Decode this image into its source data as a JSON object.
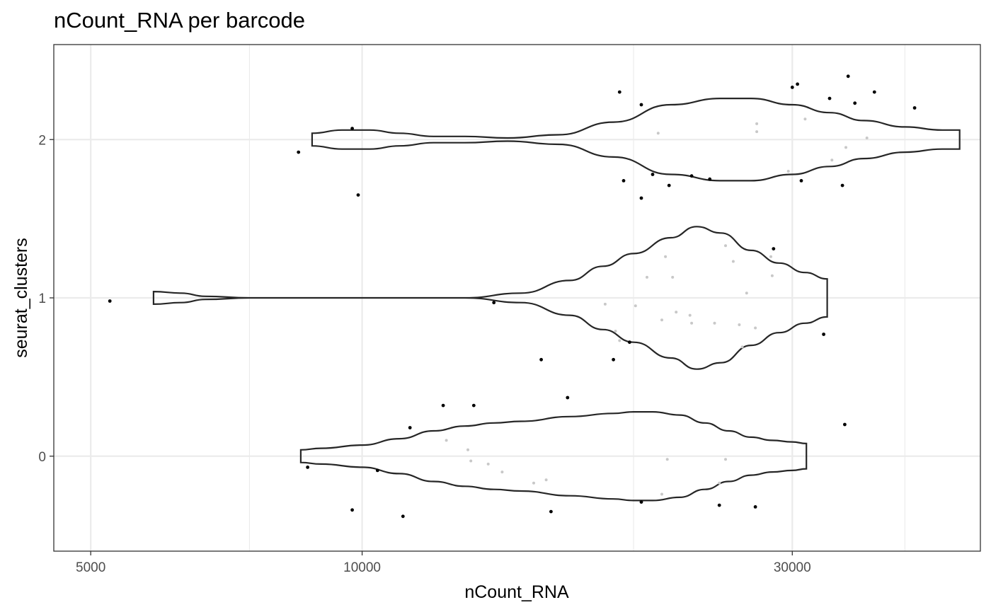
{
  "chart_data": {
    "type": "violin",
    "title": "nCount_RNA per barcode",
    "xlabel": "nCount_RNA",
    "ylabel": "seurat_clusters",
    "x_scale": "log10",
    "xlim": [
      4550,
      48500
    ],
    "ylim": [
      -0.6,
      2.6
    ],
    "x_ticks": [
      5000,
      10000,
      30000
    ],
    "x_ticks_minor": [
      7500,
      20000,
      40000
    ],
    "y_ticks": [
      0,
      1,
      2
    ],
    "y_tick_labels": [
      "0",
      "1",
      "2"
    ],
    "grid": true,
    "theme": "bw",
    "colors": {
      "outline": "#262626",
      "outlier_point": "#000000",
      "inner_point": "#c8c8c8"
    },
    "violins": [
      {
        "category": "0",
        "outline": [
          [
            8550,
            0.04
          ],
          [
            9000,
            0.05
          ],
          [
            10000,
            0.07
          ],
          [
            11000,
            0.11
          ],
          [
            12000,
            0.16
          ],
          [
            13000,
            0.19
          ],
          [
            14000,
            0.21
          ],
          [
            15000,
            0.22
          ],
          [
            17000,
            0.25
          ],
          [
            19000,
            0.27
          ],
          [
            20000,
            0.28
          ],
          [
            21000,
            0.28
          ],
          [
            22500,
            0.26
          ],
          [
            24000,
            0.21
          ],
          [
            25500,
            0.16
          ],
          [
            27000,
            0.12
          ],
          [
            28500,
            0.1
          ],
          [
            30000,
            0.09
          ],
          [
            31100,
            0.08
          ]
        ]
      },
      {
        "category": "1",
        "outline": [
          [
            5870,
            0.04
          ],
          [
            6300,
            0.03
          ],
          [
            6700,
            0.01
          ],
          [
            7500,
            0.0
          ],
          [
            10000,
            0.0
          ],
          [
            13000,
            0.0
          ],
          [
            15000,
            0.03
          ],
          [
            17000,
            0.11
          ],
          [
            18500,
            0.2
          ],
          [
            20000,
            0.28
          ],
          [
            22000,
            0.38
          ],
          [
            23500,
            0.45
          ],
          [
            25000,
            0.41
          ],
          [
            27000,
            0.3
          ],
          [
            29000,
            0.22
          ],
          [
            31000,
            0.16
          ],
          [
            32800,
            0.12
          ]
        ]
      },
      {
        "category": "2",
        "outline": [
          [
            8800,
            0.04
          ],
          [
            9500,
            0.06
          ],
          [
            10200,
            0.06
          ],
          [
            11000,
            0.04
          ],
          [
            12000,
            0.02
          ],
          [
            13000,
            0.02
          ],
          [
            14500,
            0.01
          ],
          [
            16500,
            0.03
          ],
          [
            19000,
            0.11
          ],
          [
            22000,
            0.22
          ],
          [
            25000,
            0.26
          ],
          [
            27000,
            0.26
          ],
          [
            30000,
            0.22
          ],
          [
            33000,
            0.17
          ],
          [
            36000,
            0.12
          ],
          [
            40000,
            0.08
          ],
          [
            44000,
            0.06
          ],
          [
            46000,
            0.06
          ]
        ]
      }
    ],
    "points": [
      {
        "x": 5250,
        "y": 0.98,
        "inside": false
      },
      {
        "x": 8700,
        "y": -0.07,
        "inside": false
      },
      {
        "x": 9750,
        "y": -0.34,
        "inside": false
      },
      {
        "x": 10400,
        "y": -0.09,
        "inside": false
      },
      {
        "x": 11100,
        "y": -0.38,
        "inside": false
      },
      {
        "x": 11300,
        "y": 0.18,
        "inside": false
      },
      {
        "x": 12300,
        "y": 0.32,
        "inside": false
      },
      {
        "x": 13300,
        "y": 0.32,
        "inside": false
      },
      {
        "x": 16200,
        "y": -0.35,
        "inside": false
      },
      {
        "x": 16900,
        "y": 0.37,
        "inside": false
      },
      {
        "x": 20400,
        "y": -0.29,
        "inside": false
      },
      {
        "x": 24900,
        "y": -0.31,
        "inside": false
      },
      {
        "x": 27300,
        "y": -0.32,
        "inside": false
      },
      {
        "x": 34300,
        "y": 0.2,
        "inside": false
      },
      {
        "x": 12400,
        "y": 0.1,
        "inside": true
      },
      {
        "x": 13100,
        "y": 0.04,
        "inside": true
      },
      {
        "x": 13200,
        "y": -0.03,
        "inside": true
      },
      {
        "x": 13800,
        "y": -0.05,
        "inside": true
      },
      {
        "x": 14300,
        "y": -0.1,
        "inside": true
      },
      {
        "x": 15500,
        "y": -0.17,
        "inside": true
      },
      {
        "x": 16000,
        "y": -0.15,
        "inside": true
      },
      {
        "x": 21800,
        "y": -0.02,
        "inside": true
      },
      {
        "x": 21500,
        "y": -0.24,
        "inside": true
      },
      {
        "x": 24900,
        "y": -0.17,
        "inside": true
      },
      {
        "x": 25300,
        "y": -0.02,
        "inside": true
      },
      {
        "x": 14000,
        "y": 0.97,
        "inside": false
      },
      {
        "x": 15800,
        "y": 0.61,
        "inside": false
      },
      {
        "x": 19000,
        "y": 0.61,
        "inside": false
      },
      {
        "x": 19800,
        "y": 0.72,
        "inside": false
      },
      {
        "x": 28600,
        "y": 1.31,
        "inside": false
      },
      {
        "x": 32500,
        "y": 0.77,
        "inside": false
      },
      {
        "x": 18600,
        "y": 0.96,
        "inside": true
      },
      {
        "x": 19100,
        "y": 0.79,
        "inside": true
      },
      {
        "x": 19300,
        "y": 0.73,
        "inside": true
      },
      {
        "x": 20100,
        "y": 0.95,
        "inside": true
      },
      {
        "x": 20700,
        "y": 1.13,
        "inside": true
      },
      {
        "x": 21500,
        "y": 0.86,
        "inside": true
      },
      {
        "x": 21700,
        "y": 1.26,
        "inside": true
      },
      {
        "x": 22100,
        "y": 1.13,
        "inside": true
      },
      {
        "x": 22300,
        "y": 0.91,
        "inside": true
      },
      {
        "x": 23100,
        "y": 0.89,
        "inside": true
      },
      {
        "x": 23200,
        "y": 0.84,
        "inside": true
      },
      {
        "x": 24600,
        "y": 0.84,
        "inside": true
      },
      {
        "x": 25300,
        "y": 1.33,
        "inside": true
      },
      {
        "x": 25800,
        "y": 1.23,
        "inside": true
      },
      {
        "x": 26200,
        "y": 0.83,
        "inside": true
      },
      {
        "x": 26700,
        "y": 1.03,
        "inside": true
      },
      {
        "x": 26400,
        "y": 0.69,
        "inside": true
      },
      {
        "x": 27300,
        "y": 0.81,
        "inside": true
      },
      {
        "x": 28400,
        "y": 1.26,
        "inside": true
      },
      {
        "x": 28500,
        "y": 1.14,
        "inside": true
      },
      {
        "x": 8500,
        "y": 1.92,
        "inside": false
      },
      {
        "x": 9750,
        "y": 2.07,
        "inside": false
      },
      {
        "x": 9900,
        "y": 1.65,
        "inside": false
      },
      {
        "x": 19300,
        "y": 2.3,
        "inside": false
      },
      {
        "x": 19500,
        "y": 1.74,
        "inside": false
      },
      {
        "x": 20400,
        "y": 2.22,
        "inside": false
      },
      {
        "x": 20400,
        "y": 1.63,
        "inside": false
      },
      {
        "x": 21000,
        "y": 1.78,
        "inside": false
      },
      {
        "x": 21900,
        "y": 1.71,
        "inside": false
      },
      {
        "x": 23200,
        "y": 1.77,
        "inside": false
      },
      {
        "x": 24300,
        "y": 1.75,
        "inside": false
      },
      {
        "x": 30000,
        "y": 2.33,
        "inside": false
      },
      {
        "x": 30400,
        "y": 2.35,
        "inside": false
      },
      {
        "x": 30700,
        "y": 1.74,
        "inside": false
      },
      {
        "x": 33000,
        "y": 2.26,
        "inside": false
      },
      {
        "x": 34100,
        "y": 1.71,
        "inside": false
      },
      {
        "x": 34600,
        "y": 2.4,
        "inside": false
      },
      {
        "x": 35200,
        "y": 2.23,
        "inside": false
      },
      {
        "x": 37000,
        "y": 2.3,
        "inside": false
      },
      {
        "x": 41000,
        "y": 2.2,
        "inside": false
      },
      {
        "x": 21300,
        "y": 2.04,
        "inside": true
      },
      {
        "x": 27400,
        "y": 2.1,
        "inside": true
      },
      {
        "x": 27400,
        "y": 2.05,
        "inside": true
      },
      {
        "x": 29700,
        "y": 1.8,
        "inside": true
      },
      {
        "x": 31000,
        "y": 2.13,
        "inside": true
      },
      {
        "x": 33200,
        "y": 1.87,
        "inside": true
      },
      {
        "x": 34400,
        "y": 1.95,
        "inside": true
      },
      {
        "x": 36300,
        "y": 2.01,
        "inside": true
      }
    ]
  }
}
